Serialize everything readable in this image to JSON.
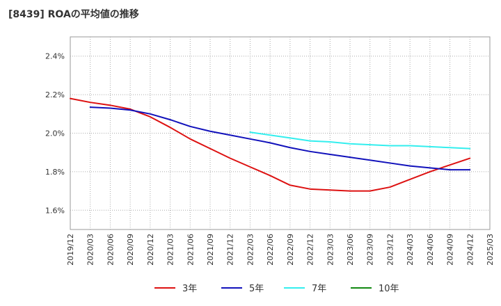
{
  "title": "[8439]  ROAの平均値の推移",
  "chart_data": {
    "type": "line",
    "title": "[8439]  ROAの平均値の推移",
    "xlabel": "",
    "ylabel": "",
    "x": [
      "2019/12",
      "2020/03",
      "2020/06",
      "2020/09",
      "2020/12",
      "2021/03",
      "2021/06",
      "2021/09",
      "2021/12",
      "2022/03",
      "2022/06",
      "2022/09",
      "2022/12",
      "2023/03",
      "2023/06",
      "2023/09",
      "2023/12",
      "2024/03",
      "2024/06",
      "2024/09",
      "2024/12",
      "2025/03"
    ],
    "x_tick_labels": [
      "2019/12",
      "2020/03",
      "2020/06",
      "2020/09",
      "2020/12",
      "2021/03",
      "2021/06",
      "2021/09",
      "2021/12",
      "2022/03",
      "2022/06",
      "2022/09",
      "2022/12",
      "2023/03",
      "2023/06",
      "2023/09",
      "2023/12",
      "2024/03",
      "2024/06",
      "2024/09",
      "2024/12",
      "2025/03"
    ],
    "y_tick_labels": [
      "1.6%",
      "1.8%",
      "2.0%",
      "2.2%",
      "2.4%"
    ],
    "y_ticks": [
      1.6,
      1.8,
      2.0,
      2.2,
      2.4
    ],
    "ylim": [
      1.5,
      2.5
    ],
    "grid": true,
    "legend_position": "bottom",
    "series": [
      {
        "name": "3年",
        "color": "#dd1111",
        "values": [
          2.18,
          2.16,
          2.145,
          2.125,
          2.085,
          2.03,
          1.97,
          1.92,
          1.87,
          1.825,
          1.78,
          1.73,
          1.71,
          1.705,
          1.7,
          1.7,
          1.72,
          1.76,
          1.8,
          1.835,
          1.87,
          null
        ]
      },
      {
        "name": "5年",
        "color": "#1111bb",
        "values": [
          null,
          2.135,
          2.13,
          2.12,
          2.1,
          2.07,
          2.035,
          2.01,
          1.99,
          1.97,
          1.95,
          1.925,
          1.905,
          1.89,
          1.875,
          1.86,
          1.845,
          1.83,
          1.82,
          1.81,
          1.81,
          null
        ]
      },
      {
        "name": "7年",
        "color": "#33eeee",
        "values": [
          null,
          null,
          null,
          null,
          null,
          null,
          null,
          null,
          null,
          2.005,
          1.99,
          1.975,
          1.96,
          1.955,
          1.945,
          1.94,
          1.935,
          1.935,
          1.93,
          1.925,
          1.92,
          null
        ]
      },
      {
        "name": "10年",
        "color": "#118811",
        "values": [
          null,
          null,
          null,
          null,
          null,
          null,
          null,
          null,
          null,
          null,
          null,
          null,
          null,
          null,
          null,
          null,
          null,
          null,
          null,
          null,
          null,
          null
        ]
      }
    ]
  }
}
